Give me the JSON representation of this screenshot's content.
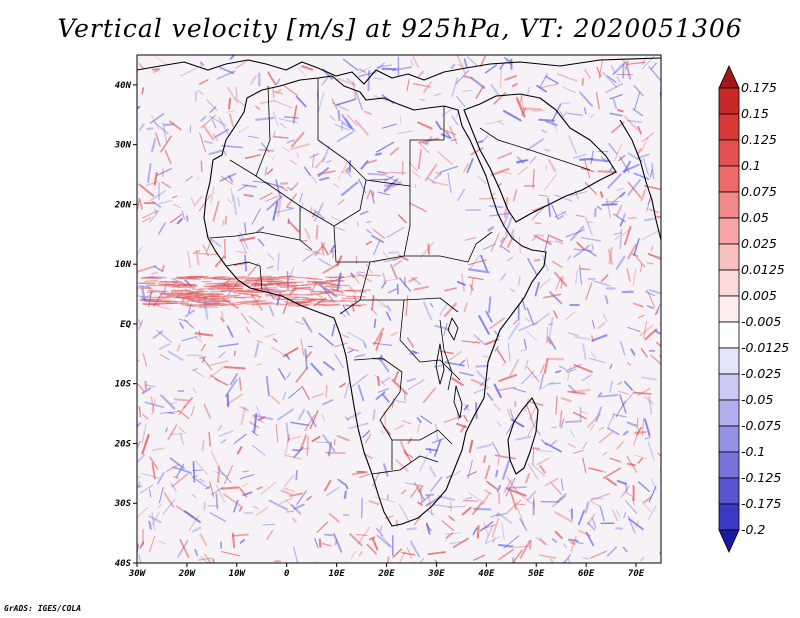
{
  "title": "Vertical velocity [m/s] at 925hPa, VT: 2020051306",
  "credit": "GrADS: IGES/COLA",
  "map": {
    "lon_range": [
      -30,
      75
    ],
    "lat_range": [
      -40,
      45
    ],
    "lon_ticks": [
      {
        "value": -30,
        "label": "30W"
      },
      {
        "value": -20,
        "label": "20W"
      },
      {
        "value": -10,
        "label": "10W"
      },
      {
        "value": 0,
        "label": "0"
      },
      {
        "value": 10,
        "label": "10E"
      },
      {
        "value": 20,
        "label": "20E"
      },
      {
        "value": 30,
        "label": "30E"
      },
      {
        "value": 40,
        "label": "40E"
      },
      {
        "value": 50,
        "label": "50E"
      },
      {
        "value": 60,
        "label": "60E"
      },
      {
        "value": 70,
        "label": "70E"
      }
    ],
    "lat_ticks": [
      {
        "value": 40,
        "label": "40N"
      },
      {
        "value": 30,
        "label": "30N"
      },
      {
        "value": 20,
        "label": "20N"
      },
      {
        "value": 10,
        "label": "10N"
      },
      {
        "value": 0,
        "label": "EQ"
      },
      {
        "value": -10,
        "label": "10S"
      },
      {
        "value": -20,
        "label": "20S"
      },
      {
        "value": -30,
        "label": "30S"
      },
      {
        "value": -40,
        "label": "40S"
      }
    ]
  },
  "colorbar": {
    "levels": [
      {
        "label": "0.175",
        "color": "#c82828"
      },
      {
        "label": "0.15",
        "color": "#d83838"
      },
      {
        "label": "0.125",
        "color": "#e65050"
      },
      {
        "label": "0.1",
        "color": "#ee6a6a"
      },
      {
        "label": "0.075",
        "color": "#f28888"
      },
      {
        "label": "0.05",
        "color": "#f6a4a4"
      },
      {
        "label": "0.025",
        "color": "#f9c0c0"
      },
      {
        "label": "0.0125",
        "color": "#fcd8d8"
      },
      {
        "label": "0.005",
        "color": "#feeeee"
      },
      {
        "label": "-0.005",
        "color": "#ffffff"
      },
      {
        "label": "-0.0125",
        "color": "#e4e4fa"
      },
      {
        "label": "-0.025",
        "color": "#cacaf4"
      },
      {
        "label": "-0.05",
        "color": "#b0b0ee"
      },
      {
        "label": "-0.075",
        "color": "#9292e6"
      },
      {
        "label": "-0.1",
        "color": "#7474dc"
      },
      {
        "label": "-0.125",
        "color": "#5656d2"
      },
      {
        "label": "-0.175",
        "color": "#3a3ac6"
      },
      {
        "label": "-0.2",
        "color": "#2424b4"
      }
    ],
    "top_color": "#a01818",
    "bottom_color": "#1a1aa0"
  },
  "colors": {
    "positive": "#e05050",
    "negative": "#5a5ae0",
    "background": "#f6f2f8",
    "coast": "#000000"
  }
}
